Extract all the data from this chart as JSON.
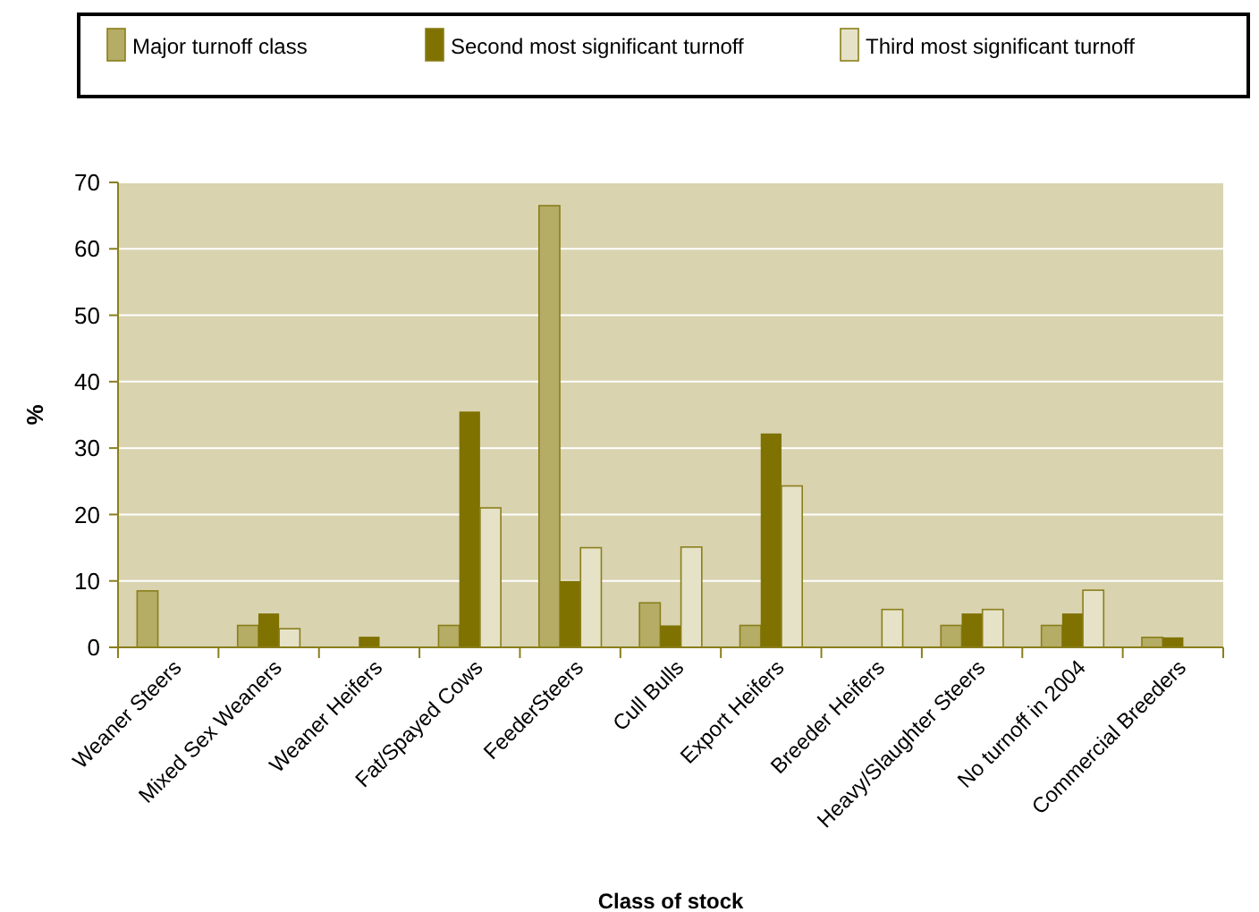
{
  "chart_data": {
    "type": "bar",
    "xlabel": "Class of stock",
    "ylabel": "%",
    "categories": [
      "Weaner Steers",
      "Mixed Sex Weaners",
      "Weaner Heifers",
      "Fat/Spayed Cows",
      "FeederSteers",
      "Cull Bulls",
      "Export Heifers",
      "Breeder Heifers",
      "Heavy/Slaughter Steers",
      "No turnoff in 2004",
      "Commercial Breeders"
    ],
    "series": [
      {
        "name": "Major turnoff class",
        "color": "#b5ac66",
        "values": [
          8.5,
          3.3,
          null,
          3.3,
          66.5,
          6.7,
          3.3,
          null,
          3.3,
          3.3,
          1.5
        ]
      },
      {
        "name": "Second most significant turnoff",
        "color": "#7f7200",
        "values": [
          null,
          5.1,
          1.6,
          35.5,
          10,
          3.3,
          32.2,
          null,
          5.1,
          5.1,
          1.5
        ]
      },
      {
        "name": "Third most significant turnoff",
        "color": "#e6e2c8",
        "values": [
          null,
          2.8,
          null,
          21,
          15,
          15.1,
          24.3,
          5.7,
          5.7,
          8.6,
          null
        ]
      }
    ],
    "ylim": [
      0,
      70
    ],
    "yticks": [
      0,
      10,
      20,
      30,
      40,
      50,
      60,
      70
    ],
    "grid": "y",
    "legend": "top"
  }
}
